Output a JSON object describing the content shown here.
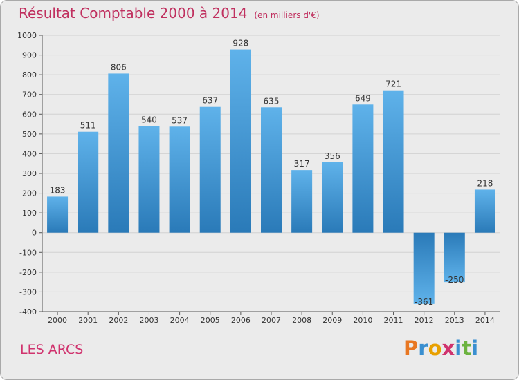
{
  "header": {
    "title": "Résultat Comptable 2000 à 2014",
    "unit": "(en milliers d'€)"
  },
  "footer": {
    "location": "LES ARCS",
    "logo_text": "Proxiti"
  },
  "colors": {
    "title": "#c0305f",
    "bar_light": "#5fb2ea",
    "bar_dark": "#2a7ab8",
    "background": "#ebebeb",
    "logo_letters": [
      "#e87722",
      "#3a8fd0",
      "#e8a000",
      "#d0336e",
      "#3a8fd0",
      "#6cb33f",
      "#3a8fd0"
    ]
  },
  "chart_data": {
    "type": "bar",
    "title": "Résultat Comptable 2000 à 2014",
    "subtitle": "(en milliers d'€)",
    "categories": [
      "2000",
      "2001",
      "2002",
      "2003",
      "2004",
      "2005",
      "2006",
      "2007",
      "2008",
      "2009",
      "2010",
      "2011",
      "2012",
      "2013",
      "2014"
    ],
    "values": [
      183,
      511,
      806,
      540,
      537,
      637,
      928,
      635,
      317,
      356,
      649,
      721,
      -361,
      -250,
      218
    ],
    "value_labels": [
      "183",
      "511",
      "806",
      "540",
      "537",
      "637",
      "928",
      "635",
      "317",
      "356",
      "649",
      "721",
      "-361",
      "-250",
      "218"
    ],
    "ylim": [
      -400,
      1000
    ],
    "yticks": [
      1000,
      900,
      800,
      700,
      600,
      500,
      400,
      300,
      200,
      100,
      0,
      -100,
      -200,
      -300,
      -400
    ],
    "ytick_labels": [
      "1000",
      "900",
      "800",
      "700",
      "600",
      "500",
      "400",
      "300",
      "200",
      "100",
      "0",
      "-100",
      "-200",
      "-300",
      "-400"
    ],
    "grid": true,
    "legend": "none"
  }
}
